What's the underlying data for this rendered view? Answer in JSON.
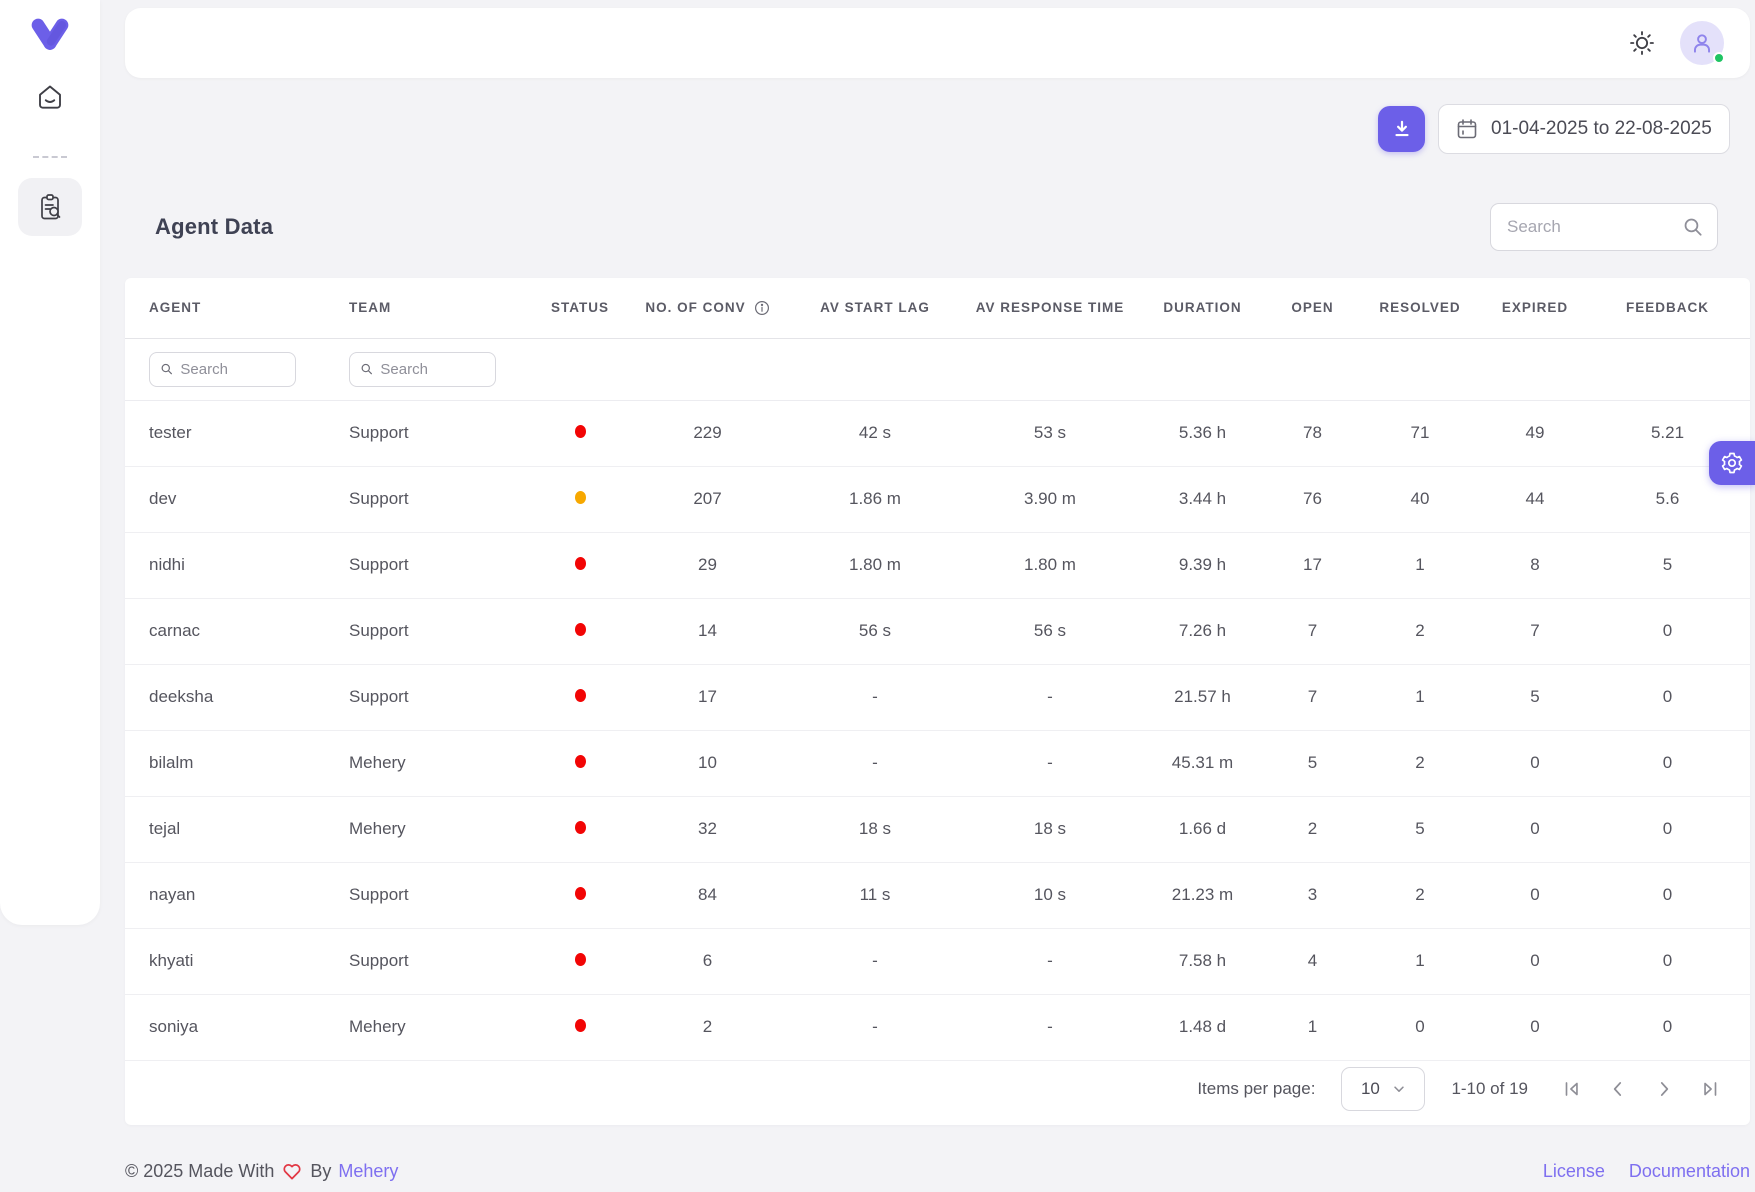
{
  "sidebar": {
    "logo": "mehery-logo",
    "items": [
      {
        "label": "home"
      },
      {
        "label": "reports"
      }
    ]
  },
  "toolbar": {
    "date_range": "01-04-2025 to 22-08-2025"
  },
  "section": {
    "title": "Agent Data",
    "search_placeholder": "Search"
  },
  "table": {
    "columns": [
      "AGENT",
      "TEAM",
      "STATUS",
      "NO. OF CONV",
      "AV START LAG",
      "AV RESPONSE TIME",
      "DURATION",
      "OPEN",
      "RESOLVED",
      "EXPIRED",
      "FEEDBACK"
    ],
    "filter_placeholder": "Search",
    "rows": [
      {
        "agent": "tester",
        "team": "Support",
        "status": "red",
        "conv": "229",
        "start_lag": "42 s",
        "response_time": "53 s",
        "duration": "5.36 h",
        "open": "78",
        "resolved": "71",
        "expired": "49",
        "feedback": "5.21"
      },
      {
        "agent": "dev",
        "team": "Support",
        "status": "amber",
        "conv": "207",
        "start_lag": "1.86 m",
        "response_time": "3.90 m",
        "duration": "3.44 h",
        "open": "76",
        "resolved": "40",
        "expired": "44",
        "feedback": "5.6"
      },
      {
        "agent": "nidhi",
        "team": "Support",
        "status": "red",
        "conv": "29",
        "start_lag": "1.80 m",
        "response_time": "1.80 m",
        "duration": "9.39 h",
        "open": "17",
        "resolved": "1",
        "expired": "8",
        "feedback": "5"
      },
      {
        "agent": "carnac",
        "team": "Support",
        "status": "red",
        "conv": "14",
        "start_lag": "56 s",
        "response_time": "56 s",
        "duration": "7.26 h",
        "open": "7",
        "resolved": "2",
        "expired": "7",
        "feedback": "0"
      },
      {
        "agent": "deeksha",
        "team": "Support",
        "status": "red",
        "conv": "17",
        "start_lag": "-",
        "response_time": "-",
        "duration": "21.57 h",
        "open": "7",
        "resolved": "1",
        "expired": "5",
        "feedback": "0"
      },
      {
        "agent": "bilalm",
        "team": "Mehery",
        "status": "red",
        "conv": "10",
        "start_lag": "-",
        "response_time": "-",
        "duration": "45.31 m",
        "open": "5",
        "resolved": "2",
        "expired": "0",
        "feedback": "0"
      },
      {
        "agent": "tejal",
        "team": "Mehery",
        "status": "red",
        "conv": "32",
        "start_lag": "18 s",
        "response_time": "18 s",
        "duration": "1.66 d",
        "open": "2",
        "resolved": "5",
        "expired": "0",
        "feedback": "0"
      },
      {
        "agent": "nayan",
        "team": "Support",
        "status": "red",
        "conv": "84",
        "start_lag": "11 s",
        "response_time": "10 s",
        "duration": "21.23 m",
        "open": "3",
        "resolved": "2",
        "expired": "0",
        "feedback": "0"
      },
      {
        "agent": "khyati",
        "team": "Support",
        "status": "red",
        "conv": "6",
        "start_lag": "-",
        "response_time": "-",
        "duration": "7.58 h",
        "open": "4",
        "resolved": "1",
        "expired": "0",
        "feedback": "0"
      },
      {
        "agent": "soniya",
        "team": "Mehery",
        "status": "red",
        "conv": "2",
        "start_lag": "-",
        "response_time": "-",
        "duration": "1.48 d",
        "open": "1",
        "resolved": "0",
        "expired": "0",
        "feedback": "0"
      }
    ]
  },
  "pagination": {
    "items_per_page_label": "Items per page:",
    "per_page": "10",
    "range": "1-10 of 19"
  },
  "footer": {
    "copyright": "© 2025 Made With",
    "by": "By",
    "brand": "Mehery",
    "links": [
      "License",
      "Documentation"
    ]
  },
  "colors": {
    "accent": "#6c5fe8",
    "link": "#7e6ff0",
    "online": "#1fc463",
    "status": {
      "red": "#f20505",
      "amber": "#f7a800"
    }
  }
}
